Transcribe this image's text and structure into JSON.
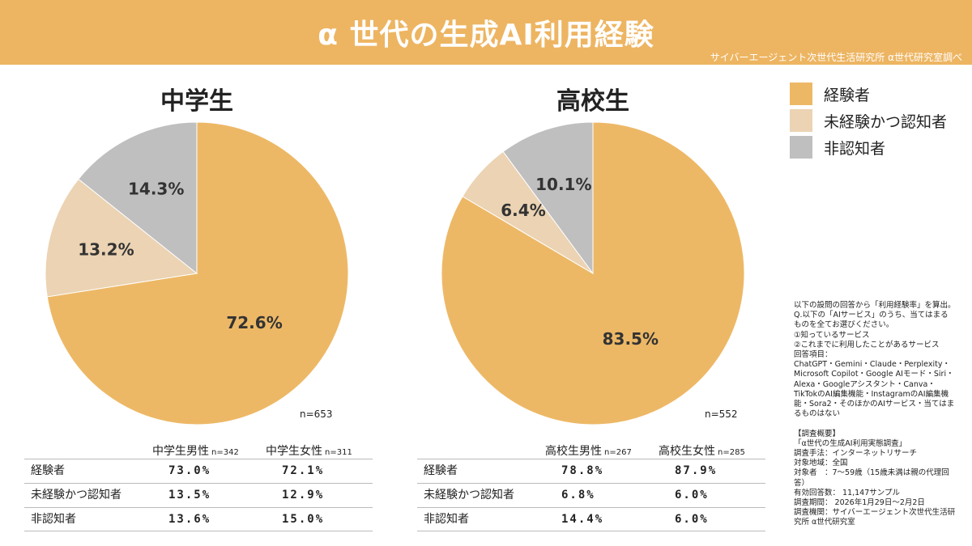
{
  "header": {
    "title": "α 世代の生成AI利用経験",
    "credit": "サイバーエージェント次世代生活研究所 α世代研究室調べ"
  },
  "colors": {
    "experienced": "#EDB866",
    "aware": "#EBD3B3",
    "unaware": "#C0BFBF",
    "header": "#EDB562"
  },
  "chart_data": [
    {
      "type": "pie",
      "title": "中学生",
      "n": "n=653",
      "labels": [
        "経験者",
        "未経験かつ認知者",
        "非認知者"
      ],
      "values": [
        72.6,
        13.2,
        14.3
      ],
      "value_labels": [
        "72.6%",
        "13.2%",
        "14.3%"
      ]
    },
    {
      "type": "pie",
      "title": "高校生",
      "n": "n=552",
      "labels": [
        "経験者",
        "未経験かつ認知者",
        "非認知者"
      ],
      "values": [
        83.5,
        6.4,
        10.1
      ],
      "value_labels": [
        "83.5%",
        "6.4%",
        "10.1%"
      ]
    }
  ],
  "legend": [
    "経験者",
    "未経験かつ認知者",
    "非認知者"
  ],
  "tables": [
    {
      "cols": [
        {
          "name": "中学生男性",
          "n": "n=342"
        },
        {
          "name": "中学生女性",
          "n": "n=311"
        }
      ],
      "rows": [
        {
          "label": "経験者",
          "v": [
            "73.0%",
            "72.1%"
          ]
        },
        {
          "label": "未経験かつ認知者",
          "v": [
            "13.5%",
            "12.9%"
          ]
        },
        {
          "label": "非認知者",
          "v": [
            "13.6%",
            "15.0%"
          ]
        }
      ]
    },
    {
      "cols": [
        {
          "name": "高校生男性",
          "n": "n=267"
        },
        {
          "name": "高校生女性",
          "n": "n=285"
        }
      ],
      "rows": [
        {
          "label": "経験者",
          "v": [
            "78.8%",
            "87.9%"
          ]
        },
        {
          "label": "未経験かつ認知者",
          "v": [
            "6.8%",
            "6.0%"
          ]
        },
        {
          "label": "非認知者",
          "v": [
            "14.4%",
            "6.0%"
          ]
        }
      ]
    }
  ],
  "notes": "以下の設問の回答から「利用経験率」を算出。\nQ.以下の「AIサービス」のうち、当てはまるものを全てお選びください。\n①知っているサービス\n②これまでに利用したことがあるサービス\n回答項目：\nChatGPT・Gemini・Claude・Perplexity・Microsoft Copilot・Google AIモード・Siri・Alexa・Googleアシスタント・Canva・TikTokのAI編集機能・InstagramのAI編集機能・Sora2・そのほかのAIサービス・当てはまるものはない\n\n【調査概要】\n「α世代の生成AI利用実態調査」\n調査手法：インターネットリサーチ\n対象地域：全国\n対象者　：7〜59歳（15歳未満は親の代理回答）\n有効回答数： 11,147サンプル\n調査期間： 2026年1月29日〜2月2日\n調査機関：サイバーエージェント次世代生活研究所 α世代研究室"
}
